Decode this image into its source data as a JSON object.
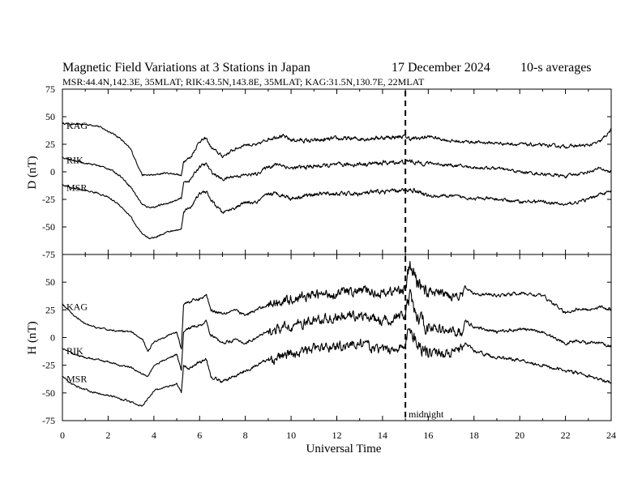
{
  "header": {
    "title": "Magnetic Field Variations at 3 Stations in Japan",
    "date": "17 December 2024",
    "averaging": "10-s averages",
    "stations_line": "MSR:44.4N,142.3E, 35MLAT;  RIK:43.5N,143.8E, 35MLAT;  KAG:31.5N,130.7E, 22MLAT"
  },
  "chart_data": [
    {
      "type": "line",
      "panel": "D",
      "ylabel": "D (nT)",
      "ylim": [
        -75,
        75
      ],
      "yticks": [
        "75",
        "50",
        "25",
        "0",
        "-25",
        "-50",
        "-75"
      ],
      "series": [
        {
          "name": "KAG",
          "x": [
            0,
            0.5,
            1,
            1.5,
            2,
            2.5,
            3,
            3.25,
            3.5,
            3.75,
            4,
            4.5,
            5,
            5.2,
            5.3,
            5.6,
            6,
            6.3,
            6.5,
            7,
            7.5,
            8,
            8.5,
            9,
            9.5,
            10,
            11,
            12,
            13,
            14,
            15,
            15.2,
            15.5,
            16,
            17,
            18,
            19,
            20,
            21,
            22,
            23,
            23.5,
            24
          ],
          "y": [
            44,
            43,
            43,
            42,
            37,
            31,
            20,
            8,
            -3,
            -3,
            -3,
            -1,
            -2,
            -4,
            10,
            13,
            28,
            30,
            22,
            14,
            20,
            25,
            24,
            30,
            33,
            29,
            28,
            30,
            30,
            31,
            32,
            30,
            30,
            32,
            28,
            27,
            26,
            25,
            24,
            23,
            24,
            27,
            38
          ]
        },
        {
          "name": "RIK",
          "x": [
            0,
            0.5,
            1,
            1.5,
            2,
            2.5,
            3,
            3.25,
            3.5,
            3.75,
            4,
            4.5,
            5,
            5.2,
            5.3,
            5.6,
            6,
            6.3,
            6.5,
            7,
            7.5,
            8,
            8.5,
            9,
            9.5,
            10,
            11,
            12,
            13,
            14,
            15,
            15.2,
            15.5,
            16,
            17,
            18,
            19,
            20,
            21,
            22,
            23,
            23.5,
            24
          ],
          "y": [
            13,
            10,
            8,
            6,
            3,
            -3,
            -14,
            -22,
            -30,
            -32,
            -32,
            -29,
            -26,
            -24,
            -10,
            -7,
            5,
            7,
            0,
            -7,
            -4,
            -3,
            -2,
            5,
            7,
            3,
            5,
            6,
            7,
            8,
            9,
            10,
            8,
            8,
            6,
            4,
            3,
            0,
            -2,
            -4,
            0,
            3,
            0
          ]
        },
        {
          "name": "MSR",
          "x": [
            0,
            0.5,
            1,
            1.5,
            2,
            2.5,
            3,
            3.25,
            3.5,
            3.75,
            4,
            4.5,
            5,
            5.2,
            5.3,
            5.6,
            6,
            6.3,
            6.5,
            7,
            7.5,
            8,
            8.5,
            9,
            9.5,
            10,
            11,
            12,
            13,
            14,
            15,
            15.2,
            15.5,
            16,
            17,
            18,
            19,
            20,
            21,
            22,
            23,
            23.5,
            24
          ],
          "y": [
            -12,
            -15,
            -17,
            -19,
            -23,
            -30,
            -41,
            -50,
            -57,
            -60,
            -60,
            -55,
            -53,
            -52,
            -36,
            -32,
            -20,
            -18,
            -26,
            -37,
            -33,
            -28,
            -28,
            -20,
            -20,
            -24,
            -20,
            -20,
            -20,
            -18,
            -17,
            -16,
            -17,
            -22,
            -22,
            -24,
            -25,
            -27,
            -27,
            -30,
            -25,
            -20,
            -18
          ]
        }
      ]
    },
    {
      "type": "line",
      "panel": "H",
      "ylabel": "H (nT)",
      "ylim": [
        -75,
        75
      ],
      "yticks": [
        "",
        "50",
        "25",
        "0",
        "-25",
        "-50",
        "-75"
      ],
      "series": [
        {
          "name": "KAG",
          "x": [
            0,
            0.5,
            1,
            1.5,
            2,
            2.5,
            3,
            3.5,
            3.75,
            4,
            4.5,
            5,
            5.2,
            5.3,
            5.5,
            6,
            6.3,
            6.5,
            7,
            7.5,
            8,
            9,
            10,
            11,
            12,
            13,
            14,
            15,
            15.2,
            15.5,
            16,
            17,
            17.5,
            17.6,
            18,
            19,
            20,
            21,
            22,
            22.5,
            23,
            23.5,
            24
          ],
          "y": [
            30,
            20,
            12,
            9,
            7,
            6,
            5,
            -2,
            -12,
            -4,
            1,
            5,
            -10,
            30,
            32,
            35,
            38,
            25,
            22,
            25,
            20,
            30,
            35,
            38,
            40,
            42,
            40,
            44,
            65,
            50,
            42,
            38,
            40,
            45,
            40,
            38,
            40,
            38,
            22,
            26,
            25,
            28,
            25
          ]
        },
        {
          "name": "RIK",
          "x": [
            0,
            0.5,
            1,
            1.5,
            2,
            2.5,
            3,
            3.5,
            3.75,
            4,
            4.5,
            5,
            5.2,
            5.3,
            5.5,
            6,
            6.3,
            6.5,
            7,
            7.5,
            8,
            9,
            10,
            11,
            12,
            13,
            14,
            15,
            15.2,
            15.5,
            16,
            17,
            17.5,
            17.6,
            18,
            19,
            20,
            21,
            22,
            22.5,
            23,
            23.5,
            24
          ],
          "y": [
            -10,
            -15,
            -18,
            -20,
            -22,
            -25,
            -27,
            -33,
            -35,
            -25,
            -20,
            -15,
            -30,
            5,
            8,
            12,
            14,
            2,
            -5,
            -2,
            -5,
            5,
            10,
            15,
            18,
            20,
            15,
            20,
            35,
            18,
            10,
            5,
            5,
            15,
            10,
            5,
            8,
            5,
            -5,
            -3,
            -5,
            -5,
            -8
          ]
        },
        {
          "name": "MSR",
          "x": [
            0,
            0.5,
            1,
            1.5,
            2,
            2.5,
            3,
            3.5,
            3.75,
            4,
            4.5,
            5,
            5.2,
            5.3,
            5.5,
            6,
            6.3,
            6.5,
            7,
            7.5,
            8,
            9,
            10,
            11,
            12,
            13,
            14,
            15,
            15.2,
            15.5,
            16,
            17,
            17.5,
            17.6,
            18,
            19,
            20,
            21,
            22,
            22.5,
            23,
            23.5,
            24
          ],
          "y": [
            -35,
            -43,
            -47,
            -50,
            -52,
            -55,
            -58,
            -62,
            -55,
            -48,
            -45,
            -42,
            -50,
            -25,
            -28,
            -22,
            -20,
            -35,
            -40,
            -35,
            -30,
            -20,
            -15,
            -10,
            -8,
            -5,
            -12,
            -8,
            10,
            -5,
            -12,
            -15,
            -10,
            -5,
            -12,
            -18,
            -20,
            -25,
            -30,
            -32,
            -35,
            -38,
            -40
          ]
        }
      ]
    }
  ],
  "x_axis": {
    "label": "Universal Time",
    "xlim": [
      0,
      24
    ],
    "ticks": [
      "0",
      "2",
      "4",
      "6",
      "8",
      "10",
      "12",
      "14",
      "16",
      "18",
      "20",
      "22",
      "24"
    ]
  },
  "annotation": {
    "midnight_x": 15,
    "midnight_label": "midnight"
  },
  "colors": {
    "line": "#000000",
    "background": "#ffffff"
  }
}
